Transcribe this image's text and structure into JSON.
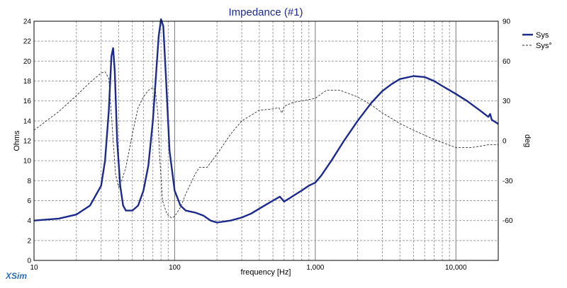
{
  "colors": {
    "impedance": "#1c2a8c",
    "phase": "#333333",
    "title": "#1c2a8c",
    "brand": "#2a6db5",
    "grid": "#a0a0a0",
    "frame": "#000000"
  },
  "app": {
    "brand": "XSim"
  },
  "chart_data": {
    "type": "line",
    "title": "Impedance (#1)",
    "xlabel": "frequency [Hz]",
    "ylabel": "Ohms",
    "y2label": "deg",
    "xscale": "log",
    "xlim": [
      10,
      20000
    ],
    "ylim": [
      0,
      24
    ],
    "y2lim": [
      -90,
      90
    ],
    "grid": true,
    "legend_position": "right",
    "x_ticks": [
      10,
      100,
      1000,
      10000
    ],
    "x_tick_labels": [
      "10",
      "100",
      "1,000",
      "10,000"
    ],
    "y_ticks": [
      0,
      2,
      4,
      6,
      8,
      10,
      12,
      14,
      16,
      18,
      20,
      22,
      24
    ],
    "y_tick_labels": [
      "0",
      "2",
      "4",
      "6",
      "8",
      "10",
      "12",
      "14",
      "16",
      "18",
      "20",
      "22",
      "24"
    ],
    "y2_ticks": [
      -60,
      -30,
      0,
      30,
      60,
      90
    ],
    "y2_tick_labels": [
      "-60",
      "-30",
      "0",
      "30",
      "60",
      "90"
    ],
    "series": [
      {
        "name": "Sys",
        "axis": "left",
        "style": "solid",
        "points": [
          [
            10,
            4.0
          ],
          [
            15,
            4.2
          ],
          [
            20,
            4.6
          ],
          [
            25,
            5.5
          ],
          [
            30,
            7.5
          ],
          [
            32,
            10.0
          ],
          [
            34,
            15.0
          ],
          [
            35.5,
            20.5
          ],
          [
            36.5,
            21.3
          ],
          [
            37.5,
            19.0
          ],
          [
            39,
            12.0
          ],
          [
            41,
            7.5
          ],
          [
            43,
            5.5
          ],
          [
            45,
            5.0
          ],
          [
            50,
            5.0
          ],
          [
            55,
            5.5
          ],
          [
            60,
            7.0
          ],
          [
            65,
            9.5
          ],
          [
            70,
            14.0
          ],
          [
            74,
            19.0
          ],
          [
            77,
            22.5
          ],
          [
            80,
            24.2
          ],
          [
            83,
            23.5
          ],
          [
            87,
            18.0
          ],
          [
            92,
            11.0
          ],
          [
            100,
            7.0
          ],
          [
            110,
            5.5
          ],
          [
            120,
            5.0
          ],
          [
            140,
            4.8
          ],
          [
            160,
            4.5
          ],
          [
            180,
            4.0
          ],
          [
            200,
            3.8
          ],
          [
            250,
            4.0
          ],
          [
            300,
            4.3
          ],
          [
            350,
            4.7
          ],
          [
            400,
            5.2
          ],
          [
            500,
            6.0
          ],
          [
            560,
            6.4
          ],
          [
            600,
            5.9
          ],
          [
            650,
            6.2
          ],
          [
            700,
            6.5
          ],
          [
            800,
            7.0
          ],
          [
            900,
            7.5
          ],
          [
            1000,
            7.8
          ],
          [
            1100,
            8.5
          ],
          [
            1300,
            10.0
          ],
          [
            1600,
            12.0
          ],
          [
            2000,
            14.0
          ],
          [
            2500,
            15.8
          ],
          [
            3000,
            17.0
          ],
          [
            3500,
            17.7
          ],
          [
            4000,
            18.2
          ],
          [
            5000,
            18.5
          ],
          [
            6000,
            18.4
          ],
          [
            7000,
            18.0
          ],
          [
            8000,
            17.5
          ],
          [
            10000,
            16.7
          ],
          [
            12000,
            16.0
          ],
          [
            15000,
            15.0
          ],
          [
            17000,
            14.4
          ],
          [
            17500,
            14.7
          ],
          [
            18000,
            14.1
          ],
          [
            20000,
            13.7
          ]
        ]
      },
      {
        "name": "Sys°",
        "axis": "right",
        "style": "dashed",
        "points": [
          [
            10,
            8
          ],
          [
            15,
            22
          ],
          [
            20,
            34
          ],
          [
            25,
            44
          ],
          [
            30,
            51
          ],
          [
            32,
            52
          ],
          [
            34,
            47
          ],
          [
            36,
            10
          ],
          [
            38,
            -25
          ],
          [
            40,
            -35
          ],
          [
            42,
            -30
          ],
          [
            45,
            -20
          ],
          [
            50,
            5
          ],
          [
            55,
            25
          ],
          [
            60,
            33
          ],
          [
            65,
            38
          ],
          [
            70,
            40
          ],
          [
            73,
            38
          ],
          [
            76,
            20
          ],
          [
            78,
            -10
          ],
          [
            82,
            -45
          ],
          [
            88,
            -55
          ],
          [
            95,
            -58
          ],
          [
            100,
            -57
          ],
          [
            110,
            -50
          ],
          [
            120,
            -40
          ],
          [
            140,
            -25
          ],
          [
            150,
            -20
          ],
          [
            170,
            -20
          ],
          [
            200,
            -10
          ],
          [
            250,
            5
          ],
          [
            300,
            15
          ],
          [
            400,
            23
          ],
          [
            500,
            24
          ],
          [
            550,
            25
          ],
          [
            580,
            21
          ],
          [
            600,
            26
          ],
          [
            700,
            29
          ],
          [
            800,
            30
          ],
          [
            1000,
            32
          ],
          [
            1200,
            38
          ],
          [
            1500,
            38
          ],
          [
            2000,
            33
          ],
          [
            2500,
            27
          ],
          [
            3000,
            21
          ],
          [
            4000,
            13
          ],
          [
            5000,
            8
          ],
          [
            7000,
            1
          ],
          [
            10000,
            -5
          ],
          [
            13000,
            -5
          ],
          [
            15000,
            -4
          ],
          [
            17000,
            -3
          ],
          [
            20000,
            -3
          ]
        ]
      }
    ]
  }
}
